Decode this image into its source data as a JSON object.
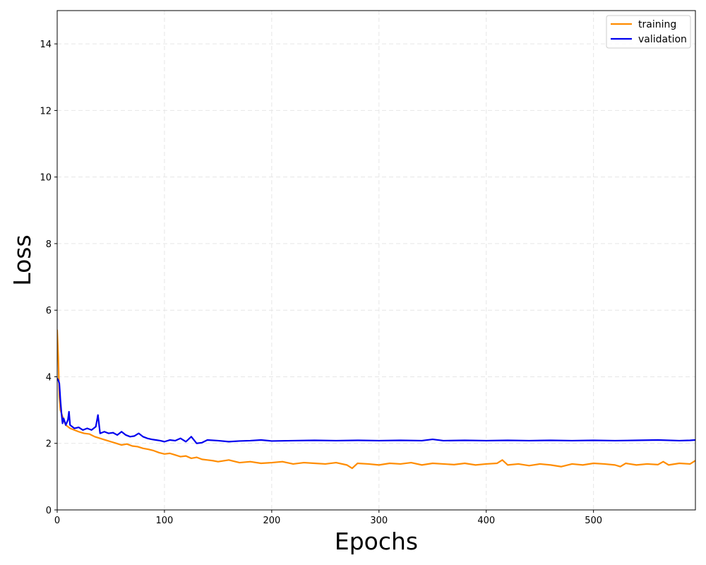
{
  "chart_data": {
    "type": "line",
    "xlabel": "Epochs",
    "ylabel": "Loss",
    "xlim": [
      0,
      595
    ],
    "ylim": [
      0,
      15
    ],
    "xticks": [
      0,
      100,
      200,
      300,
      400,
      500
    ],
    "yticks": [
      0,
      2,
      4,
      6,
      8,
      10,
      12,
      14
    ],
    "grid": true,
    "legend_position": "top-right",
    "series": [
      {
        "name": "training",
        "color": "#ff8c00",
        "x": [
          0,
          1,
          2,
          3,
          5,
          8,
          12,
          16,
          20,
          25,
          30,
          35,
          40,
          45,
          50,
          55,
          60,
          65,
          70,
          75,
          80,
          85,
          90,
          95,
          100,
          105,
          110,
          115,
          120,
          125,
          130,
          135,
          140,
          145,
          150,
          160,
          170,
          180,
          190,
          200,
          210,
          220,
          230,
          240,
          250,
          260,
          270,
          275,
          280,
          290,
          300,
          310,
          320,
          330,
          340,
          350,
          360,
          370,
          380,
          390,
          400,
          410,
          415,
          420,
          430,
          440,
          450,
          460,
          470,
          480,
          490,
          500,
          510,
          520,
          525,
          530,
          540,
          550,
          560,
          565,
          570,
          580,
          590,
          595
        ],
        "y": [
          5.4,
          4.6,
          3.4,
          3.0,
          2.8,
          2.55,
          2.45,
          2.4,
          2.35,
          2.3,
          2.28,
          2.2,
          2.15,
          2.1,
          2.05,
          2.0,
          1.95,
          1.98,
          1.92,
          1.9,
          1.85,
          1.82,
          1.78,
          1.72,
          1.68,
          1.7,
          1.65,
          1.6,
          1.62,
          1.55,
          1.58,
          1.52,
          1.5,
          1.48,
          1.45,
          1.5,
          1.42,
          1.45,
          1.4,
          1.42,
          1.45,
          1.38,
          1.42,
          1.4,
          1.38,
          1.42,
          1.35,
          1.25,
          1.4,
          1.38,
          1.35,
          1.4,
          1.38,
          1.42,
          1.35,
          1.4,
          1.38,
          1.36,
          1.4,
          1.35,
          1.38,
          1.4,
          1.5,
          1.35,
          1.38,
          1.33,
          1.38,
          1.35,
          1.3,
          1.38,
          1.35,
          1.4,
          1.38,
          1.35,
          1.3,
          1.4,
          1.35,
          1.38,
          1.36,
          1.45,
          1.35,
          1.4,
          1.38,
          1.48
        ]
      },
      {
        "name": "validation",
        "color": "#0000ee",
        "x": [
          0,
          1,
          2,
          3,
          4,
          5,
          6,
          8,
          10,
          11,
          12,
          14,
          16,
          20,
          24,
          28,
          32,
          36,
          38,
          40,
          44,
          48,
          52,
          56,
          60,
          64,
          68,
          72,
          76,
          80,
          84,
          88,
          92,
          96,
          100,
          105,
          110,
          115,
          120,
          125,
          130,
          135,
          140,
          150,
          160,
          170,
          180,
          190,
          200,
          220,
          240,
          260,
          280,
          300,
          320,
          340,
          350,
          360,
          380,
          400,
          420,
          440,
          460,
          480,
          500,
          520,
          540,
          560,
          580,
          590,
          595
        ],
        "y": [
          3.95,
          3.9,
          3.8,
          3.3,
          2.9,
          2.6,
          2.75,
          2.55,
          2.7,
          2.95,
          2.55,
          2.5,
          2.45,
          2.48,
          2.4,
          2.45,
          2.4,
          2.5,
          2.85,
          2.3,
          2.35,
          2.3,
          2.32,
          2.25,
          2.35,
          2.25,
          2.2,
          2.22,
          2.3,
          2.2,
          2.15,
          2.12,
          2.1,
          2.08,
          2.05,
          2.1,
          2.08,
          2.15,
          2.05,
          2.2,
          2.0,
          2.02,
          2.1,
          2.08,
          2.05,
          2.07,
          2.08,
          2.1,
          2.07,
          2.08,
          2.09,
          2.08,
          2.09,
          2.08,
          2.09,
          2.08,
          2.12,
          2.08,
          2.09,
          2.08,
          2.09,
          2.08,
          2.09,
          2.08,
          2.09,
          2.08,
          2.09,
          2.1,
          2.08,
          2.09,
          2.1
        ]
      }
    ]
  }
}
